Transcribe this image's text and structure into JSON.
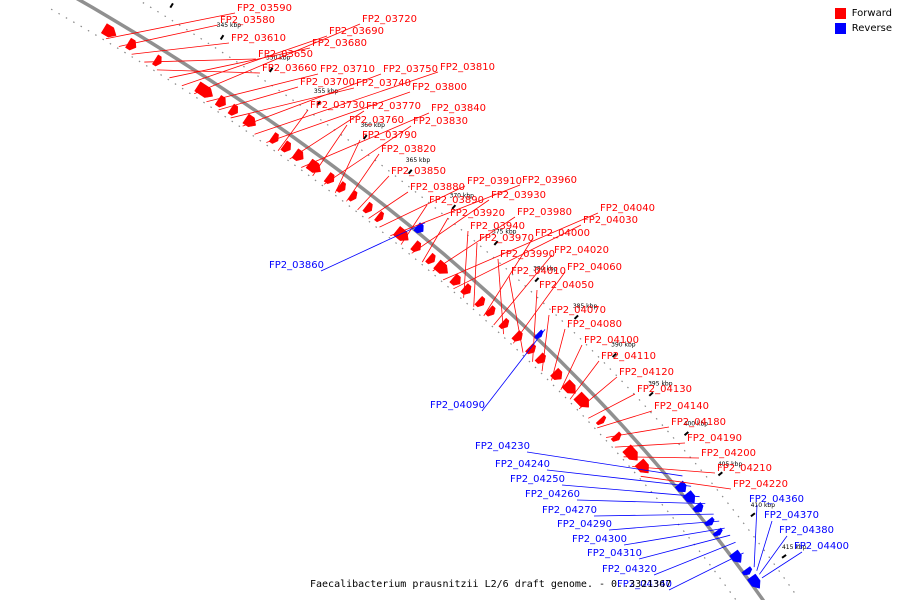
{
  "legend": {
    "forward_label": "Forward",
    "reverse_label": "Reverse",
    "forward_color": "#ff0000",
    "reverse_color": "#0000ff"
  },
  "caption": "Faecalibacterium prausnitzii L2/6 draft genome. - 0..3321367",
  "scale_ticks": [
    "335 kbp",
    "340 kbp",
    "345 kbp",
    "350 kbp",
    "355 kbp",
    "360 kbp",
    "365 kbp",
    "370 kbp",
    "375 kbp",
    "380 kbp",
    "385 kbp",
    "390 kbp",
    "395 kbp",
    "400 kbp",
    "405 kbp",
    "410 kbp",
    "415 kbp"
  ],
  "genes_forward": [
    "FP2_03590",
    "FP2_03580",
    "FP2_03610",
    "FP2_03650",
    "FP2_03660",
    "FP2_03680",
    "FP2_03690",
    "FP2_03720",
    "FP2_03710",
    "FP2_03700",
    "FP2_03740",
    "FP2_03750",
    "FP2_03810",
    "FP2_03800",
    "FP2_03730",
    "FP2_03770",
    "FP2_03840",
    "FP2_03760",
    "FP2_03830",
    "FP2_03790",
    "FP2_03820",
    "FP2_03850",
    "FP2_03880",
    "FP2_03910",
    "FP2_03960",
    "FP2_03890",
    "FP2_03930",
    "FP2_03920",
    "FP2_03980",
    "FP2_04040",
    "FP2_04030",
    "FP2_03940",
    "FP2_03970",
    "FP2_04000",
    "FP2_04020",
    "FP2_03990",
    "FP2_04060",
    "FP2_04010",
    "FP2_04050",
    "FP2_04070",
    "FP2_04080",
    "FP2_04100",
    "FP2_04110",
    "FP2_04120",
    "FP2_04130",
    "FP2_04140",
    "FP2_04180",
    "FP2_04190",
    "FP2_04200",
    "FP2_04210",
    "FP2_04220"
  ],
  "genes_reverse": [
    "FP2_03860",
    "FP2_04090",
    "FP2_04230",
    "FP2_04240",
    "FP2_04250",
    "FP2_04260",
    "FP2_04270",
    "FP2_04290",
    "FP2_04300",
    "FP2_04310",
    "FP2_04320",
    "FP2_04340",
    "FP2_04360",
    "FP2_04370",
    "FP2_04380",
    "FP2_04400"
  ]
}
